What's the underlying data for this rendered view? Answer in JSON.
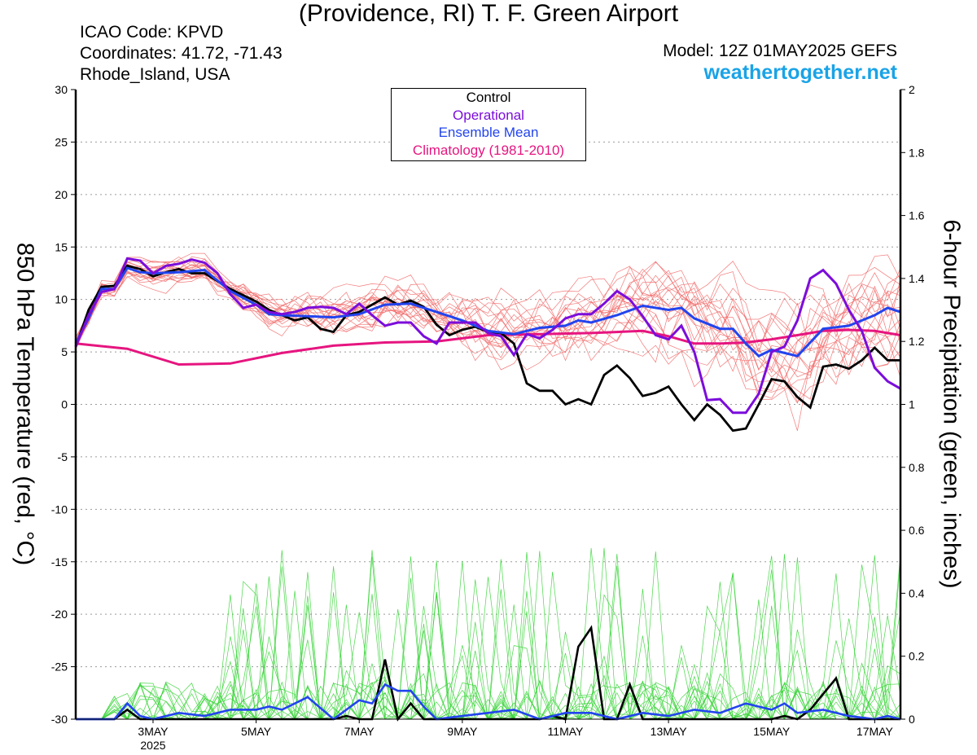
{
  "header": {
    "title": "(Providence, RI) T. F. Green Airport",
    "icao": "ICAO Code: KPVD",
    "coordinates": "Coordinates: 41.72, -71.43",
    "region": "Rhode_Island, USA",
    "model": "Model: 12Z 01MAY2025 GEFS",
    "site": "weathertogether.net"
  },
  "colors": {
    "control": "#000000",
    "operational": "#7b0ddb",
    "ensemble_mean": "#2244ee",
    "climatology": "#e6157f",
    "members_temp": "#f26b6b",
    "members_precip": "#37d437",
    "site": "#1aa3e6"
  },
  "chart_data": {
    "type": "line",
    "x_unit": "day of May 2025 (00Z)",
    "xlim": [
      1.5,
      17.5
    ],
    "x_ticks": [
      {
        "x": 3,
        "label": "3MAY",
        "sub": "2025"
      },
      {
        "x": 5,
        "label": "5MAY",
        "sub": ""
      },
      {
        "x": 7,
        "label": "7MAY",
        "sub": ""
      },
      {
        "x": 9,
        "label": "9MAY",
        "sub": ""
      },
      {
        "x": 11,
        "label": "11MAY",
        "sub": ""
      },
      {
        "x": 13,
        "label": "13MAY",
        "sub": ""
      },
      {
        "x": 15,
        "label": "15MAY",
        "sub": ""
      },
      {
        "x": 17,
        "label": "17MAY",
        "sub": ""
      }
    ],
    "ylabel_left": "850 hPa Temperature (red, °C)",
    "ylabel_right": "6-hour Precipitation (green, inches)",
    "ylim_left": [
      -30,
      30
    ],
    "yticks_left": [
      30,
      25,
      20,
      15,
      10,
      5,
      0,
      -5,
      -10,
      -15,
      -20,
      -25,
      -30
    ],
    "ylim_right": [
      0,
      2
    ],
    "yticks_right": [
      "2",
      "1.8",
      "1.6",
      "1.4",
      "1.2",
      "1",
      "0.8",
      "0.6",
      "0.4",
      "0.2",
      "0"
    ],
    "grid": "horizontal dotted",
    "legend": {
      "position": "top-center",
      "entries": [
        {
          "label": "Control",
          "color": "#000000"
        },
        {
          "label": "Operational",
          "color": "#7b0ddb"
        },
        {
          "label": "Ensemble Mean",
          "color": "#2244ee"
        },
        {
          "label": "Climatology (1981-2010)",
          "color": "#e6157f"
        }
      ]
    },
    "temperature": {
      "control": [
        [
          1.5,
          5.5
        ],
        [
          1.75,
          9
        ],
        [
          2,
          11.2
        ],
        [
          2.25,
          11.3
        ],
        [
          2.5,
          13.2
        ],
        [
          2.75,
          12.9
        ],
        [
          3,
          12.2
        ],
        [
          3.25,
          12.6
        ],
        [
          3.5,
          12.9
        ],
        [
          3.75,
          12.5
        ],
        [
          4,
          12.5
        ],
        [
          4.5,
          11
        ],
        [
          5,
          9.8
        ],
        [
          5.25,
          9
        ],
        [
          5.5,
          8.5
        ],
        [
          5.75,
          8
        ],
        [
          6,
          8.3
        ],
        [
          6.25,
          7.2
        ],
        [
          6.5,
          6.9
        ],
        [
          6.75,
          8.5
        ],
        [
          7,
          8.8
        ],
        [
          7.25,
          9.5
        ],
        [
          7.5,
          10.2
        ],
        [
          7.75,
          9.5
        ],
        [
          8,
          9.9
        ],
        [
          8.25,
          9.3
        ],
        [
          8.5,
          7.6
        ],
        [
          8.75,
          6.6
        ],
        [
          9,
          7.1
        ],
        [
          9.25,
          7.4
        ],
        [
          9.5,
          6.9
        ],
        [
          9.75,
          6.8
        ],
        [
          10,
          5.8
        ],
        [
          10.25,
          2
        ],
        [
          10.5,
          1.3
        ],
        [
          10.75,
          1.3
        ],
        [
          11,
          0
        ],
        [
          11.25,
          0.5
        ],
        [
          11.5,
          0
        ],
        [
          11.75,
          2.8
        ],
        [
          12,
          3.7
        ],
        [
          12.25,
          2.5
        ],
        [
          12.5,
          0.8
        ],
        [
          12.75,
          1.1
        ],
        [
          13,
          1.7
        ],
        [
          13.25,
          0
        ],
        [
          13.5,
          -1.5
        ],
        [
          13.75,
          0
        ],
        [
          14,
          -1
        ],
        [
          14.25,
          -2.5
        ],
        [
          14.5,
          -2.3
        ],
        [
          14.75,
          0
        ],
        [
          15,
          2.4
        ],
        [
          15.25,
          2.2
        ],
        [
          15.5,
          0.7
        ],
        [
          15.75,
          -0.3
        ],
        [
          16,
          3.6
        ],
        [
          16.25,
          3.8
        ],
        [
          16.5,
          3.4
        ],
        [
          16.75,
          4.2
        ],
        [
          17,
          5.4
        ],
        [
          17.25,
          4.2
        ],
        [
          17.5,
          4.2
        ]
      ],
      "operational": [
        [
          1.5,
          5.5
        ],
        [
          1.75,
          8.5
        ],
        [
          2,
          10.7
        ],
        [
          2.25,
          11
        ],
        [
          2.5,
          13.9
        ],
        [
          2.75,
          13.7
        ],
        [
          3,
          12.5
        ],
        [
          3.25,
          13.2
        ],
        [
          3.5,
          13.4
        ],
        [
          3.75,
          13.8
        ],
        [
          4,
          13.5
        ],
        [
          4.25,
          12.5
        ],
        [
          4.5,
          10.5
        ],
        [
          4.75,
          9.2
        ],
        [
          5,
          9.5
        ],
        [
          5.25,
          8.8
        ],
        [
          5.5,
          8.6
        ],
        [
          5.75,
          8.8
        ],
        [
          6,
          9.2
        ],
        [
          6.25,
          9.3
        ],
        [
          6.5,
          9.2
        ],
        [
          6.75,
          8.6
        ],
        [
          7,
          9.6
        ],
        [
          7.25,
          8.5
        ],
        [
          7.5,
          7.5
        ],
        [
          7.75,
          7.8
        ],
        [
          8,
          7.8
        ],
        [
          8.25,
          6.5
        ],
        [
          8.5,
          5.8
        ],
        [
          8.75,
          7.8
        ],
        [
          9,
          7.8
        ],
        [
          9.25,
          7.8
        ],
        [
          9.5,
          6.8
        ],
        [
          9.75,
          6.5
        ],
        [
          10,
          4.7
        ],
        [
          10.25,
          6.7
        ],
        [
          10.5,
          6.3
        ],
        [
          10.75,
          7.1
        ],
        [
          11,
          8.2
        ],
        [
          11.25,
          8.6
        ],
        [
          11.5,
          8.6
        ],
        [
          11.75,
          9.6
        ],
        [
          12,
          10.8
        ],
        [
          12.25,
          10
        ],
        [
          12.5,
          8.4
        ],
        [
          12.75,
          6.6
        ],
        [
          13,
          6.2
        ],
        [
          13.25,
          7.5
        ],
        [
          13.5,
          5
        ],
        [
          13.75,
          0.4
        ],
        [
          14,
          0.5
        ],
        [
          14.25,
          -0.8
        ],
        [
          14.5,
          -0.8
        ],
        [
          14.75,
          1
        ],
        [
          15,
          5
        ],
        [
          15.25,
          5.5
        ],
        [
          15.5,
          8
        ],
        [
          15.75,
          12
        ],
        [
          16,
          12.8
        ],
        [
          16.25,
          11.5
        ],
        [
          16.5,
          9
        ],
        [
          16.75,
          7
        ],
        [
          17,
          3.5
        ],
        [
          17.25,
          2.2
        ],
        [
          17.5,
          1.5
        ]
      ],
      "ensemble_mean": [
        [
          1.5,
          5.8
        ],
        [
          1.75,
          8.2
        ],
        [
          2,
          11
        ],
        [
          2.25,
          11
        ],
        [
          2.5,
          13
        ],
        [
          2.75,
          12.6
        ],
        [
          3,
          12.5
        ],
        [
          3.5,
          12.6
        ],
        [
          4,
          12.8
        ],
        [
          4.5,
          10.8
        ],
        [
          5,
          9.5
        ],
        [
          5.25,
          8.6
        ],
        [
          5.5,
          8.5
        ],
        [
          6,
          8.4
        ],
        [
          6.5,
          8.3
        ],
        [
          7,
          8.6
        ],
        [
          7.5,
          9.5
        ],
        [
          8,
          9.6
        ],
        [
          8.5,
          8.8
        ],
        [
          9,
          8
        ],
        [
          9.5,
          7
        ],
        [
          10,
          6.7
        ],
        [
          10.5,
          7.3
        ],
        [
          11,
          7.5
        ],
        [
          11.25,
          8
        ],
        [
          11.5,
          7.8
        ],
        [
          12,
          8.5
        ],
        [
          12.5,
          9.4
        ],
        [
          13,
          9
        ],
        [
          13.25,
          9.2
        ],
        [
          13.5,
          8.2
        ],
        [
          14,
          7.2
        ],
        [
          14.25,
          7.2
        ],
        [
          14.5,
          5.8
        ],
        [
          14.75,
          4.6
        ],
        [
          15,
          5.2
        ],
        [
          15.5,
          4.6
        ],
        [
          16,
          7.2
        ],
        [
          16.5,
          7.5
        ],
        [
          17,
          8.5
        ],
        [
          17.25,
          9.2
        ],
        [
          17.5,
          8.8
        ]
      ],
      "climatology": [
        [
          1.5,
          5.8
        ],
        [
          2.5,
          5.3
        ],
        [
          3.5,
          3.8
        ],
        [
          4.5,
          3.9
        ],
        [
          5.5,
          4.9
        ],
        [
          6.5,
          5.6
        ],
        [
          7.5,
          5.9
        ],
        [
          8.5,
          6
        ],
        [
          9.5,
          6.6
        ],
        [
          10.5,
          6.7
        ],
        [
          11.5,
          6.8
        ],
        [
          12,
          6.9
        ],
        [
          12.5,
          7
        ],
        [
          13,
          6.5
        ],
        [
          13.5,
          5.8
        ],
        [
          14,
          5.8
        ],
        [
          14.5,
          5.9
        ],
        [
          15,
          6.2
        ],
        [
          15.5,
          6.6
        ],
        [
          16,
          7
        ],
        [
          16.5,
          7.1
        ],
        [
          17,
          7
        ],
        [
          17.5,
          6.6
        ]
      ]
    },
    "precipitation": {
      "control": [
        [
          1.5,
          0
        ],
        [
          2,
          0
        ],
        [
          2.25,
          0
        ],
        [
          2.5,
          0.03
        ],
        [
          2.75,
          0
        ],
        [
          6.5,
          0
        ],
        [
          6.75,
          0.01
        ],
        [
          7,
          0
        ],
        [
          7.25,
          0
        ],
        [
          7.5,
          0.19
        ],
        [
          7.75,
          0
        ],
        [
          8,
          0.05
        ],
        [
          8.25,
          0
        ],
        [
          8.5,
          0
        ],
        [
          10.5,
          0
        ],
        [
          10.75,
          0.01
        ],
        [
          11,
          0
        ],
        [
          11.25,
          0.23
        ],
        [
          11.5,
          0.29
        ],
        [
          11.75,
          0
        ],
        [
          12,
          0
        ],
        [
          12.25,
          0.11
        ],
        [
          12.5,
          0
        ],
        [
          15,
          0
        ],
        [
          15.25,
          0.01
        ],
        [
          15.5,
          0
        ],
        [
          15.75,
          0.03
        ],
        [
          16,
          0.08
        ],
        [
          16.25,
          0.13
        ],
        [
          16.5,
          0
        ],
        [
          17,
          0
        ],
        [
          17.25,
          0
        ],
        [
          17.5,
          0
        ]
      ],
      "ensemble_mean": [
        [
          1.5,
          0
        ],
        [
          2,
          0
        ],
        [
          2.25,
          0
        ],
        [
          2.5,
          0.05
        ],
        [
          2.75,
          0.01
        ],
        [
          3,
          0
        ],
        [
          3.5,
          0.02
        ],
        [
          4,
          0.01
        ],
        [
          4.25,
          0.02
        ],
        [
          4.5,
          0.03
        ],
        [
          4.75,
          0.03
        ],
        [
          5,
          0.03
        ],
        [
          5.25,
          0.04
        ],
        [
          5.5,
          0.03
        ],
        [
          5.75,
          0.05
        ],
        [
          6,
          0.07
        ],
        [
          6.5,
          0
        ],
        [
          7,
          0.06
        ],
        [
          7.25,
          0.05
        ],
        [
          7.5,
          0.11
        ],
        [
          7.75,
          0.09
        ],
        [
          8,
          0.09
        ],
        [
          8.25,
          0.04
        ],
        [
          8.5,
          0
        ],
        [
          9,
          0.01
        ],
        [
          9.5,
          0.02
        ],
        [
          10,
          0.03
        ],
        [
          10.5,
          0
        ],
        [
          11,
          0.02
        ],
        [
          11.5,
          0.02
        ],
        [
          12,
          0
        ],
        [
          12.5,
          0.02
        ],
        [
          13,
          0.01
        ],
        [
          13.5,
          0.03
        ],
        [
          14,
          0.02
        ],
        [
          14.5,
          0.05
        ],
        [
          15,
          0.03
        ],
        [
          15.25,
          0.05
        ],
        [
          15.5,
          0.02
        ],
        [
          16,
          0.03
        ],
        [
          16.5,
          0.01
        ],
        [
          17,
          0
        ],
        [
          17.25,
          0.01
        ],
        [
          17.5,
          0
        ]
      ]
    },
    "members_note": "20 thin ensemble member traces each for temperature (red) and precipitation (green)"
  }
}
